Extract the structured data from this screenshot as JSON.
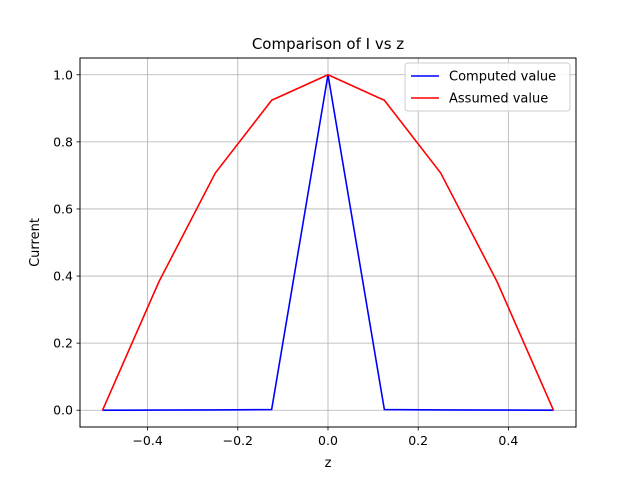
{
  "chart_data": {
    "type": "line",
    "title": "Comparison of I vs z",
    "xlabel": "z",
    "ylabel": "Current",
    "xlim": [
      -0.55,
      0.55
    ],
    "ylim": [
      -0.05,
      1.05
    ],
    "xticks": [
      -0.4,
      -0.2,
      0.0,
      0.2,
      0.4
    ],
    "xtick_labels": [
      "−0.4",
      "−0.2",
      "0.0",
      "0.2",
      "0.4"
    ],
    "yticks": [
      0.0,
      0.2,
      0.4,
      0.6,
      0.8,
      1.0
    ],
    "ytick_labels": [
      "0.0",
      "0.2",
      "0.4",
      "0.6",
      "0.8",
      "1.0"
    ],
    "grid": true,
    "legend_position": "top-right",
    "series": [
      {
        "name": "Computed value",
        "color": "#0000ff",
        "x": [
          -0.5,
          -0.375,
          -0.25,
          -0.125,
          0.0,
          0.125,
          0.25,
          0.375,
          0.5
        ],
        "y": [
          0.0,
          0.0005,
          0.001,
          0.002,
          1.0,
          0.002,
          0.001,
          0.0005,
          0.0
        ]
      },
      {
        "name": "Assumed value",
        "color": "#ff0000",
        "x": [
          -0.5,
          -0.375,
          -0.25,
          -0.125,
          0.0,
          0.125,
          0.25,
          0.375,
          0.5
        ],
        "y": [
          0.0,
          0.383,
          0.707,
          0.924,
          1.0,
          0.924,
          0.707,
          0.383,
          0.0
        ]
      }
    ]
  }
}
